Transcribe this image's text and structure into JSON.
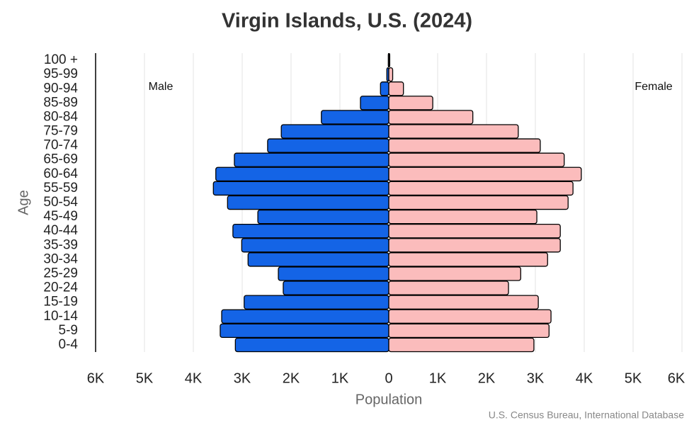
{
  "chart_data": {
    "type": "pyramid",
    "title": "Virgin Islands, U.S. (2024)",
    "x_label": "Population",
    "y_label": "Age",
    "source": "U.S. Census Bureau, International Database",
    "categories": [
      "0-4",
      "5-9",
      "10-14",
      "15-19",
      "20-24",
      "25-29",
      "30-34",
      "35-39",
      "40-44",
      "45-49",
      "50-54",
      "55-59",
      "60-64",
      "65-69",
      "70-74",
      "75-79",
      "80-84",
      "85-89",
      "90-94",
      "95-99",
      "100 +"
    ],
    "series": [
      {
        "name": "Male",
        "color": "#1464e6",
        "side": "left",
        "values": [
          3140,
          3450,
          3420,
          2960,
          2160,
          2260,
          2880,
          3010,
          3190,
          2680,
          3300,
          3590,
          3540,
          3160,
          2480,
          2200,
          1380,
          580,
          170,
          40,
          10
        ]
      },
      {
        "name": "Female",
        "color": "#fbbcbc",
        "side": "right",
        "values": [
          2970,
          3280,
          3320,
          3060,
          2450,
          2700,
          3250,
          3510,
          3510,
          3030,
          3670,
          3770,
          3940,
          3590,
          3100,
          2650,
          1720,
          900,
          300,
          80,
          20
        ]
      }
    ],
    "xlim": [
      -6000,
      6000
    ],
    "xticks": [
      {
        "value": -6000,
        "label": "6K"
      },
      {
        "value": -5000,
        "label": "5K"
      },
      {
        "value": -4000,
        "label": "4K"
      },
      {
        "value": -3000,
        "label": "3K"
      },
      {
        "value": -2000,
        "label": "2K"
      },
      {
        "value": -1000,
        "label": "1K"
      },
      0,
      {
        "value": 1000,
        "label": "1K"
      },
      {
        "value": 2000,
        "label": "2K"
      },
      {
        "value": 3000,
        "label": "3K"
      },
      {
        "value": 4000,
        "label": "4K"
      },
      {
        "value": 5000,
        "label": "5K"
      },
      {
        "value": 6000,
        "label": "6K"
      }
    ],
    "grid": true
  }
}
